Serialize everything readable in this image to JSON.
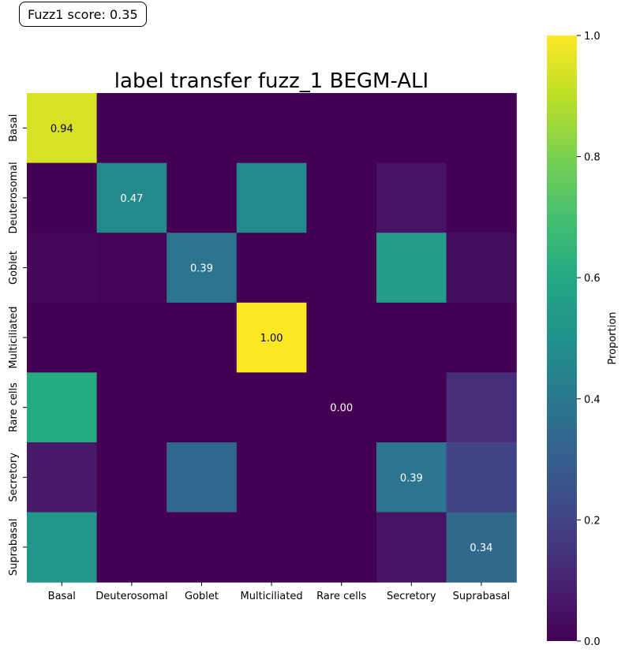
{
  "score_label": "Fuzz1 score: 0.35",
  "chart_data": {
    "type": "heatmap",
    "title": "label transfer fuzz_1 BEGM-ALI",
    "xlabel": "",
    "ylabel": "",
    "x_categories": [
      "Basal",
      "Deuterosomal",
      "Goblet",
      "Multiciliated",
      "Rare cells",
      "Secretory",
      "Suprabasal"
    ],
    "y_categories": [
      "Basal",
      "Deuterosomal",
      "Goblet",
      "Multiciliated",
      "Rare cells",
      "Secretory",
      "Suprabasal"
    ],
    "values": [
      [
        0.94,
        0.0,
        0.0,
        0.0,
        0.0,
        0.0,
        0.0
      ],
      [
        0.0,
        0.47,
        0.0,
        0.47,
        0.0,
        0.05,
        0.0
      ],
      [
        0.02,
        0.01,
        0.39,
        0.0,
        0.0,
        0.55,
        0.03
      ],
      [
        0.0,
        0.0,
        0.0,
        1.0,
        0.0,
        0.0,
        0.0
      ],
      [
        0.61,
        0.0,
        0.0,
        0.0,
        0.0,
        0.0,
        0.13
      ],
      [
        0.07,
        0.0,
        0.33,
        0.0,
        0.0,
        0.39,
        0.2
      ],
      [
        0.52,
        0.0,
        0.0,
        0.0,
        0.0,
        0.05,
        0.34
      ]
    ],
    "annotations": [
      {
        "row": 0,
        "col": 0,
        "text": "0.94"
      },
      {
        "row": 1,
        "col": 1,
        "text": "0.47"
      },
      {
        "row": 2,
        "col": 2,
        "text": "0.39"
      },
      {
        "row": 3,
        "col": 3,
        "text": "1.00"
      },
      {
        "row": 4,
        "col": 4,
        "text": "0.00"
      },
      {
        "row": 5,
        "col": 5,
        "text": "0.39"
      },
      {
        "row": 6,
        "col": 6,
        "text": "0.34"
      }
    ],
    "colorbar": {
      "label": "Proportion",
      "range": [
        0.0,
        1.0
      ],
      "ticks": [
        "0.0",
        "0.2",
        "0.4",
        "0.6",
        "0.8",
        "1.0"
      ],
      "colormap": "viridis"
    }
  }
}
